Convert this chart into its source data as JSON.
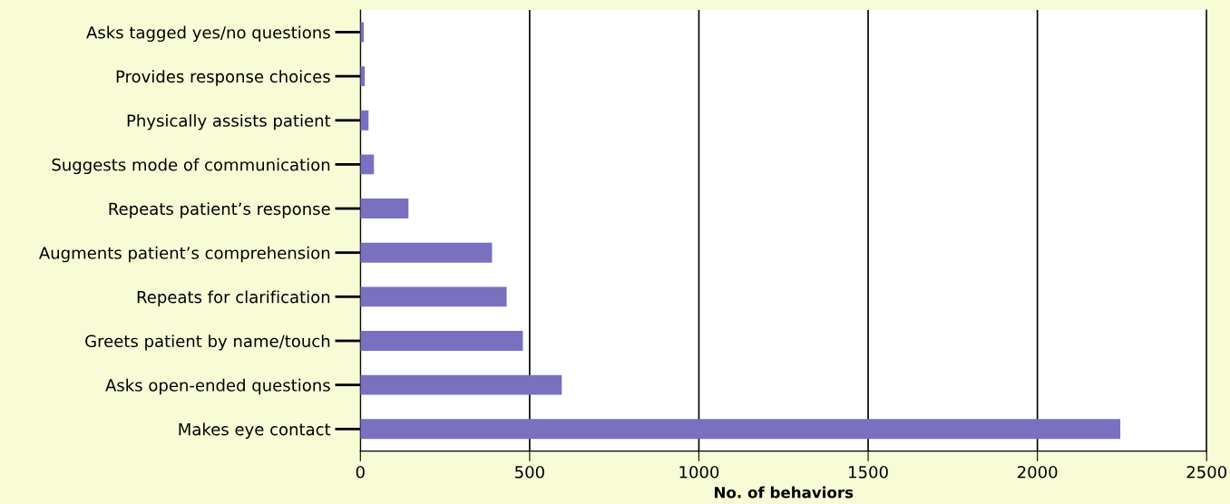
{
  "chart_data": {
    "type": "bar",
    "orientation": "horizontal",
    "xlabel": "No. of behaviors",
    "categories": [
      "Asks tagged yes/no questions",
      "Provides response choices",
      "Physically assists patient",
      "Suggests mode of communication",
      "Repeats patient’s response",
      "Augments patient’s comprehension",
      "Repeats for clarification",
      "Greets patient by name/touch",
      "Asks open-ended questions",
      "Makes eye contact"
    ],
    "values": [
      10,
      13,
      24,
      40,
      142,
      389,
      432,
      480,
      595,
      2245
    ],
    "color": "#7a70c0",
    "xlim": [
      0,
      2500
    ],
    "xticks": [
      0,
      500,
      1000,
      1500,
      2000,
      2500
    ],
    "grid": "x"
  }
}
